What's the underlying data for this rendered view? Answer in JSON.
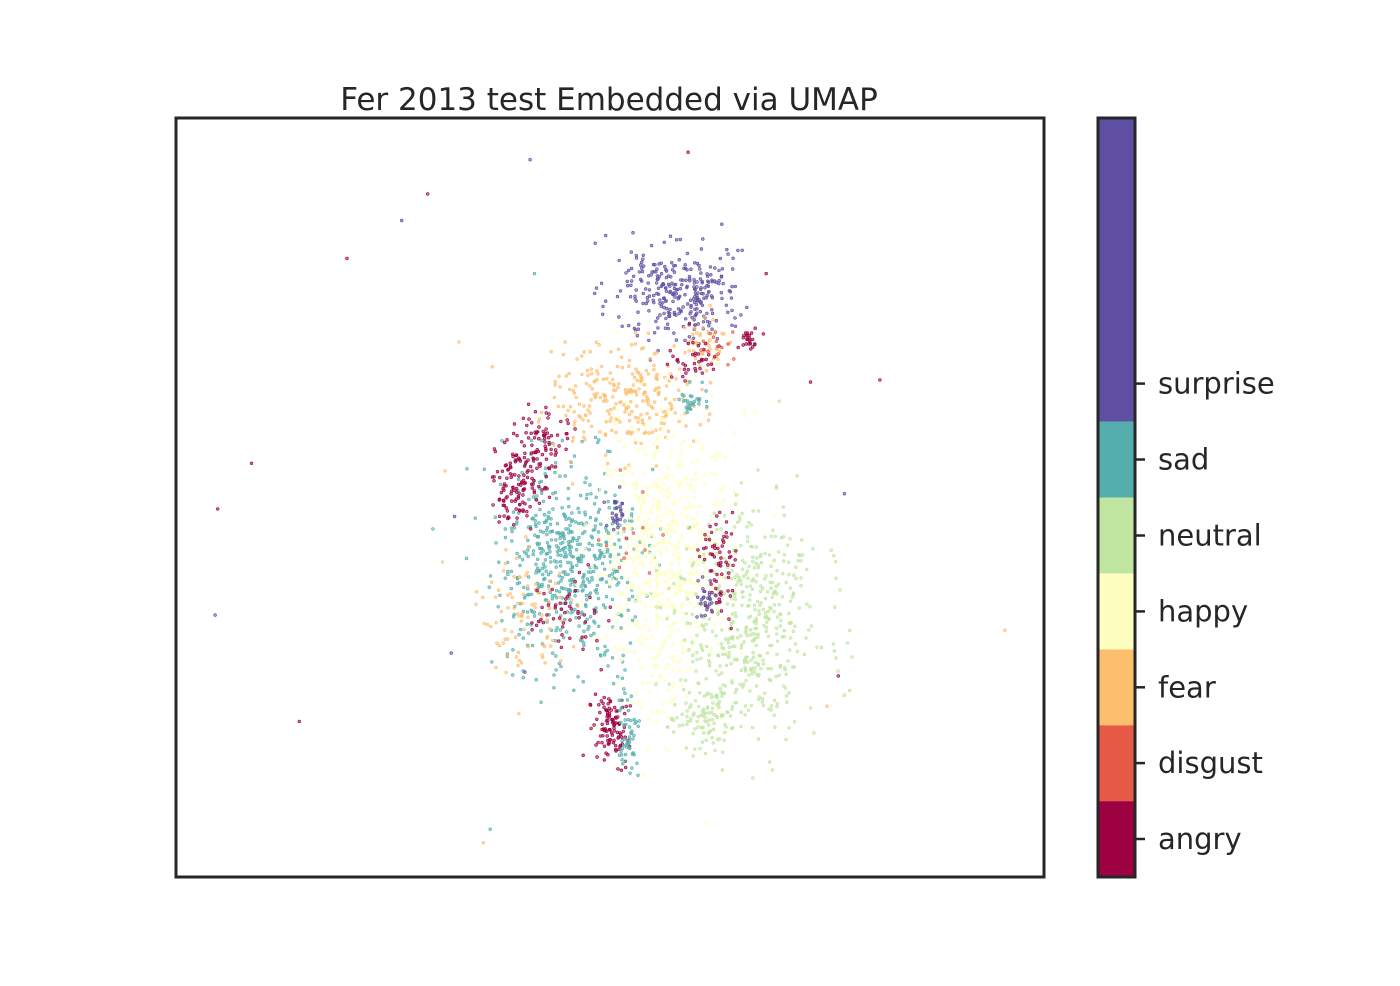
{
  "chart_data": {
    "type": "scatter",
    "title": "Fer 2013 test Embedded via UMAP",
    "xlabel": "",
    "ylabel": "",
    "axes_ticks": "none",
    "grid": false,
    "legend": "colorbar-right",
    "xlim": [
      0,
      100
    ],
    "ylim": [
      0,
      100
    ],
    "colorbar": {
      "labels": [
        "angry",
        "disgust",
        "fear",
        "happy",
        "neutral",
        "sad",
        "surprise"
      ],
      "colors": [
        "#9e0142",
        "#e75a47",
        "#fdbe6e",
        "#feffbe",
        "#bfe5a0",
        "#54aead",
        "#5e4fa2"
      ]
    },
    "clusters": [
      {
        "class": "surprise",
        "cx": 58,
        "cy": 77,
        "sx": 3.3,
        "sy": 3.0,
        "n": 300
      },
      {
        "class": "sad",
        "cx": 45,
        "cy": 41,
        "sx": 4.0,
        "sy": 6.5,
        "n": 560
      },
      {
        "class": "fear",
        "cx": 52,
        "cy": 63,
        "sx": 4.2,
        "sy": 3.4,
        "n": 260
      },
      {
        "class": "fear",
        "cx": 40,
        "cy": 35,
        "sx": 2.6,
        "sy": 5.0,
        "n": 90
      },
      {
        "class": "fear",
        "cx": 61,
        "cy": 70,
        "sx": 1.6,
        "sy": 2.0,
        "n": 45
      },
      {
        "class": "happy",
        "cx": 56,
        "cy": 42,
        "sx": 3.8,
        "sy": 9.5,
        "n": 650
      },
      {
        "class": "neutral",
        "cx": 66,
        "cy": 34,
        "sx": 4.0,
        "sy": 7.5,
        "n": 480
      },
      {
        "class": "neutral",
        "cx": 61,
        "cy": 21,
        "sx": 2.0,
        "sy": 2.5,
        "n": 90
      },
      {
        "class": "angry",
        "cx": 42,
        "cy": 57,
        "sx": 1.6,
        "sy": 2.3,
        "n": 90
      },
      {
        "class": "angry",
        "cx": 39,
        "cy": 51,
        "sx": 1.7,
        "sy": 2.3,
        "n": 110
      },
      {
        "class": "angry",
        "cx": 50,
        "cy": 20,
        "sx": 1.0,
        "sy": 2.3,
        "n": 110
      },
      {
        "class": "angry",
        "cx": 60,
        "cy": 68,
        "sx": 1.5,
        "sy": 1.3,
        "n": 40
      },
      {
        "class": "angry",
        "cx": 66,
        "cy": 71,
        "sx": 0.7,
        "sy": 0.8,
        "n": 25
      },
      {
        "class": "angry",
        "cx": 62.5,
        "cy": 42,
        "sx": 1.0,
        "sy": 4.0,
        "n": 70
      },
      {
        "class": "angry",
        "cx": 45,
        "cy": 35,
        "sx": 2.2,
        "sy": 2.2,
        "n": 50
      },
      {
        "class": "sad",
        "cx": 52,
        "cy": 19,
        "sx": 0.6,
        "sy": 2.5,
        "n": 55
      },
      {
        "class": "sad",
        "cx": 59.5,
        "cy": 62.5,
        "sx": 0.9,
        "sy": 1.0,
        "n": 30
      },
      {
        "class": "surprise",
        "cx": 51,
        "cy": 48,
        "sx": 0.6,
        "sy": 1.5,
        "n": 30
      },
      {
        "class": "surprise",
        "cx": 61,
        "cy": 37,
        "sx": 0.6,
        "sy": 1.3,
        "n": 28
      },
      {
        "class": "disgust",
        "cx": 63,
        "cy": 70,
        "sx": 1.2,
        "sy": 1.2,
        "n": 14
      },
      {
        "class": "disgust",
        "cx": 53,
        "cy": 45,
        "sx": 2.5,
        "sy": 3.0,
        "n": 14
      }
    ],
    "outliers": [
      {
        "x": 40.8,
        "y": 94.5,
        "class": "surprise"
      },
      {
        "x": 59.0,
        "y": 95.5,
        "class": "angry"
      },
      {
        "x": 29.0,
        "y": 90.0,
        "class": "angry"
      },
      {
        "x": 26.0,
        "y": 86.5,
        "class": "surprise"
      },
      {
        "x": 19.7,
        "y": 81.5,
        "class": "angry"
      },
      {
        "x": 41.3,
        "y": 79.5,
        "class": "sad"
      },
      {
        "x": 48.3,
        "y": 83.5,
        "class": "surprise"
      },
      {
        "x": 49.5,
        "y": 84.5,
        "class": "surprise"
      },
      {
        "x": 68.0,
        "y": 79.5,
        "class": "angry"
      },
      {
        "x": 32.6,
        "y": 70.5,
        "class": "fear"
      },
      {
        "x": 73.1,
        "y": 65.2,
        "class": "angry"
      },
      {
        "x": 81.1,
        "y": 65.5,
        "class": "angry"
      },
      {
        "x": 8.7,
        "y": 54.5,
        "class": "angry"
      },
      {
        "x": 4.8,
        "y": 48.5,
        "class": "angry"
      },
      {
        "x": 4.5,
        "y": 34.5,
        "class": "surprise"
      },
      {
        "x": 14.2,
        "y": 20.5,
        "class": "angry"
      },
      {
        "x": 32.1,
        "y": 47.5,
        "class": "surprise"
      },
      {
        "x": 31.7,
        "y": 29.5,
        "class": "surprise"
      },
      {
        "x": 30.7,
        "y": 41.5,
        "class": "neutral"
      },
      {
        "x": 77.0,
        "y": 50.5,
        "class": "surprise"
      },
      {
        "x": 95.5,
        "y": 32.5,
        "class": "fear"
      },
      {
        "x": 76.3,
        "y": 26.5,
        "class": "angry"
      },
      {
        "x": 75.0,
        "y": 22.5,
        "class": "fear"
      },
      {
        "x": 36.2,
        "y": 6.3,
        "class": "sad"
      },
      {
        "x": 35.4,
        "y": 4.5,
        "class": "fear"
      },
      {
        "x": 39.5,
        "y": 21.5,
        "class": "fear"
      },
      {
        "x": 31.0,
        "y": 53.5,
        "class": "fear"
      },
      {
        "x": 40.2,
        "y": 27.0,
        "class": "surprise"
      }
    ]
  }
}
